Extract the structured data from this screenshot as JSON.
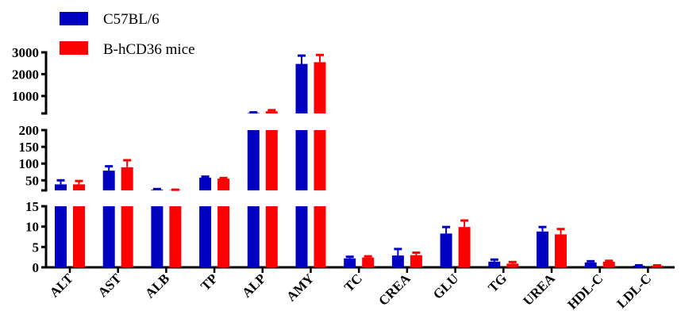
{
  "chart_data": {
    "type": "bar",
    "title": "",
    "xlabel": "",
    "ylabel": "",
    "legend_placement": "top-left",
    "grid": false,
    "broken_y_axis": true,
    "y_segments": [
      {
        "range": [
          0,
          15
        ],
        "ticks": [
          "0",
          "5",
          "10",
          "15"
        ]
      },
      {
        "range": [
          20,
          200
        ],
        "ticks": [
          "50",
          "100",
          "150",
          "200"
        ]
      },
      {
        "range": [
          200,
          3000
        ],
        "ticks": [
          "1000",
          "2000",
          "3000"
        ]
      }
    ],
    "categories": [
      "ALT",
      "AST",
      "ALB",
      "TP",
      "ALP",
      "AMY",
      "TC",
      "CREA",
      "GLU",
      "TG",
      "UREA",
      "HDL-C",
      "LDL-C"
    ],
    "series": [
      {
        "name": "C57BL/6",
        "color": "#0000c0",
        "values": [
          38,
          79,
          22,
          58,
          220,
          2470,
          2.2,
          2.9,
          8.3,
          1.4,
          8.8,
          1.2,
          0.4
        ],
        "error": [
          12,
          13,
          2,
          3,
          30,
          380,
          0.4,
          1.6,
          1.6,
          0.5,
          1.1,
          0.3,
          0.1
        ]
      },
      {
        "name": "B-hCD36 mice",
        "color": "#ff0000",
        "values": [
          38,
          89,
          21,
          55,
          300,
          2550,
          2.4,
          3.0,
          9.9,
          0.9,
          8.1,
          1.4,
          0.4
        ],
        "error": [
          10,
          21,
          1,
          2,
          50,
          330,
          0.3,
          0.6,
          1.6,
          0.4,
          1.3,
          0.2,
          0.1
        ]
      }
    ]
  }
}
